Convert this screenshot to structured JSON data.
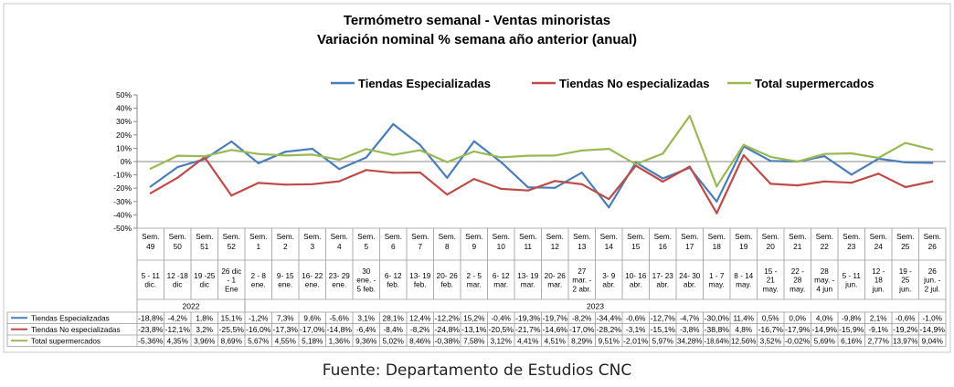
{
  "caption": "Fuente: Departamento de Estudios CNC",
  "chart_data": {
    "type": "line",
    "title": "Termómetro semanal - Ventas minoristas",
    "subtitle": "Variación nominal % semana año anterior (anual)",
    "ylim": [
      -50,
      50
    ],
    "yticks": [
      "50%",
      "40%",
      "30%",
      "20%",
      "10%",
      "0%",
      "-10%",
      "-20%",
      "-30%",
      "-40%",
      "-50%"
    ],
    "ytick_values": [
      50,
      40,
      30,
      20,
      10,
      0,
      -10,
      -20,
      -30,
      -40,
      -50
    ],
    "legend_position": "top",
    "grid": false,
    "weeks": [
      "Sem. 49",
      "Sem. 50",
      "Sem. 51",
      "Sem. 52",
      "Sem. 1",
      "Sem. 2",
      "Sem. 3",
      "Sem. 4",
      "Sem. 5",
      "Sem. 6",
      "Sem. 7",
      "Sem. 8",
      "Sem. 9",
      "Sem. 10",
      "Sem. 11",
      "Sem. 12",
      "Sem. 13",
      "Sem. 14",
      "Sem. 15",
      "Sem. 16",
      "Sem. 17",
      "Sem. 18",
      "Sem. 19",
      "Sem. 20",
      "Sem. 21",
      "Sem. 22",
      "Sem. 23",
      "Sem. 24",
      "Sem. 25",
      "Sem. 26"
    ],
    "date_ranges": [
      "5 - 11 dic.",
      "12 -18 dic",
      "19 -25 dic",
      "26 dic - 1 Ene",
      "2 - 8 ene.",
      "9- 15 ene.",
      "16- 22 ene.",
      "23- 29 ene.",
      "30 ene. - 5 feb.",
      "6- 12 feb.",
      "13- 19 feb.",
      "20- 26 feb.",
      "2 - 5 mar.",
      "6- 12 mar.",
      "13- 19 mar.",
      "20- 26 mar.",
      "27 mar. - 2 abr.",
      "3- 9 abr.",
      "10- 16 abr.",
      "17- 23 abr.",
      "24- 30 abr.",
      "1 - 7 may.",
      "8 - 14 may.",
      "15 - 21 may.",
      "22 - 28 may.",
      "28 may. - 4 jun",
      "5 - 11 jun.",
      "12 - 18 jun.",
      "19 - 25 jun.",
      "26 jun. - 2 jul."
    ],
    "year_groups": [
      {
        "label": "2022",
        "start": 0,
        "end": 3
      },
      {
        "label": "2023",
        "start": 4,
        "end": 29
      }
    ],
    "series": [
      {
        "name": "Tiendas Especializadas",
        "color": "#4a7ebb",
        "values": [
          -18.8,
          -4.2,
          1.8,
          15.1,
          -1.2,
          7.3,
          9.6,
          -5.6,
          3.1,
          28.1,
          12.4,
          -12.2,
          15.2,
          -0.4,
          -19.3,
          -19.7,
          -8.2,
          -34.4,
          -0.6,
          -12.7,
          -4.7,
          -30.0,
          11.4,
          0.5,
          0.0,
          4.0,
          -9.8,
          2.1,
          -0.6,
          -1.0
        ],
        "labels": [
          "-18,8%",
          "-4,2%",
          "1,8%",
          "15,1%",
          "-1,2%",
          "7,3%",
          "9,6%",
          "-5,6%",
          "3,1%",
          "28,1%",
          "12,4%",
          "-12,2%",
          "15,2%",
          "-0,4%",
          "-19,3%",
          "-19,7%",
          "-8,2%",
          "-34,4%",
          "-0,6%",
          "-12,7%",
          "-4,7%",
          "-30,0%",
          "11,4%",
          "0,5%",
          "0,0%",
          "4,0%",
          "-9,8%",
          "2,1%",
          "-0,6%",
          "-1,0%"
        ]
      },
      {
        "name": "Tiendas No especializadas",
        "color": "#be4b48",
        "values": [
          -23.8,
          -12.1,
          3.2,
          -25.5,
          -16.0,
          -17.3,
          -17.0,
          -14.8,
          -6.4,
          -8.4,
          -8.2,
          -24.8,
          -13.1,
          -20.5,
          -21.7,
          -14.6,
          -17.0,
          -28.2,
          -3.1,
          -15.1,
          -3.8,
          -38.8,
          4.8,
          -16.7,
          -17.9,
          -14.9,
          -15.9,
          -9.1,
          -19.2,
          -14.9
        ],
        "labels": [
          "-23,8%",
          "-12,1%",
          "3,2%",
          "-25,5%",
          "-16,0%",
          "-17,3%",
          "-17,0%",
          "-14,8%",
          "-6,4%",
          "-8,4%",
          "-8,2%",
          "-24,8%",
          "-13,1%",
          "-20,5%",
          "-21,7%",
          "-14,6%",
          "-17,0%",
          "-28,2%",
          "-3,1%",
          "-15,1%",
          "-3,8%",
          "-38,8%",
          "4,8%",
          "-16,7%",
          "-17,9%",
          "-14,9%",
          "-15,9%",
          "-9,1%",
          "-19,2%",
          "-14,9%"
        ]
      },
      {
        "name": "Total supermercados",
        "color": "#98b954",
        "values": [
          -5.36,
          4.35,
          3.96,
          8.69,
          5.67,
          4.55,
          5.18,
          1.36,
          9.36,
          5.02,
          8.46,
          -0.38,
          7.58,
          3.12,
          4.41,
          4.51,
          8.29,
          9.51,
          -2.01,
          5.97,
          34.28,
          -18.64,
          12.56,
          3.52,
          -0.02,
          5.69,
          6.16,
          2.77,
          13.97,
          9.04
        ],
        "labels": [
          "-5,36%",
          "4,35%",
          "3,96%",
          "8,69%",
          "5,67%",
          "4,55%",
          "5,18%",
          "1,36%",
          "9,36%",
          "5,02%",
          "8,46%",
          "-0,38%",
          "7,58%",
          "3,12%",
          "4,41%",
          "4,51%",
          "8,29%",
          "9,51%",
          "-2,01%",
          "5,97%",
          "34,28%",
          "-18,64%",
          "12,56%",
          "3,52%",
          "-0,02%",
          "5,69%",
          "6,16%",
          "2,77%",
          "13,97%",
          "9,04%"
        ]
      }
    ]
  }
}
